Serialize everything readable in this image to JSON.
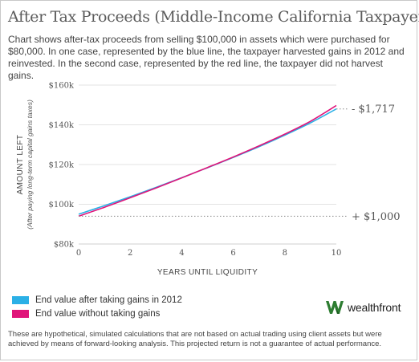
{
  "title": "After Tax Proceeds (Middle-Income California Taxpayer)",
  "subtitle": "Chart shows after-tax proceeds from selling $100,000 in assets which were purchased for $80,000. In one case, represented by the blue line, the taxpayer harvested gains in 2012 and reinvested. In the second case, represented by the red line, the taxpayer did not harvest gains.",
  "legend": [
    {
      "label": "End value after taking gains in 2012",
      "color": "#2bb0e6"
    },
    {
      "label": "End value without taking gains",
      "color": "#e0157a"
    }
  ],
  "logo": {
    "text": "wealthfront",
    "icon": "wealthfront-w-logo-icon",
    "color": "#2e7d32"
  },
  "footnote": "These are hypothetical, simulated calculations that are not based on actual trading using client assets but were achieved by means of forward-looking analysis.  This projected return is not a guarantee of actual performance.",
  "chart_data": {
    "type": "line",
    "xlabel": "YEARS UNTIL LIQUIDITY",
    "ylabel": "AMOUNT LEFT",
    "ylabel_sub": "(After paying long-term capital gains taxes)",
    "xlim": [
      0,
      10
    ],
    "ylim": [
      80000,
      160000
    ],
    "x_ticks": [
      0,
      2,
      4,
      6,
      8,
      10
    ],
    "x_tick_labels": [
      "0",
      "2",
      "4",
      "6",
      "8",
      "10"
    ],
    "y_ticks": [
      80000,
      100000,
      120000,
      140000,
      160000
    ],
    "y_tick_labels": [
      "$80k",
      "$100k",
      "$120k",
      "$140k",
      "$160k"
    ],
    "grid": "horizontal",
    "series": [
      {
        "name": "End value after taking gains in 2012",
        "color": "#2bb0e6",
        "x": [
          0,
          1,
          2,
          3,
          4,
          5,
          6,
          7,
          8,
          9,
          10
        ],
        "values": [
          95000,
          99300,
          103800,
          108500,
          113400,
          118400,
          123600,
          129000,
          134800,
          141000,
          148000
        ]
      },
      {
        "name": "End value without taking gains",
        "color": "#e0157a",
        "x": [
          0,
          1,
          2,
          3,
          4,
          5,
          6,
          7,
          8,
          9,
          10
        ],
        "values": [
          94000,
          98500,
          103300,
          108200,
          113300,
          118500,
          123800,
          129400,
          135300,
          141800,
          149700
        ]
      }
    ],
    "annotations": [
      {
        "label": "- $1,717",
        "y": 148000,
        "color": "#555555"
      },
      {
        "label": "+ $1,000",
        "y": 94000,
        "color": "#555555"
      }
    ]
  }
}
